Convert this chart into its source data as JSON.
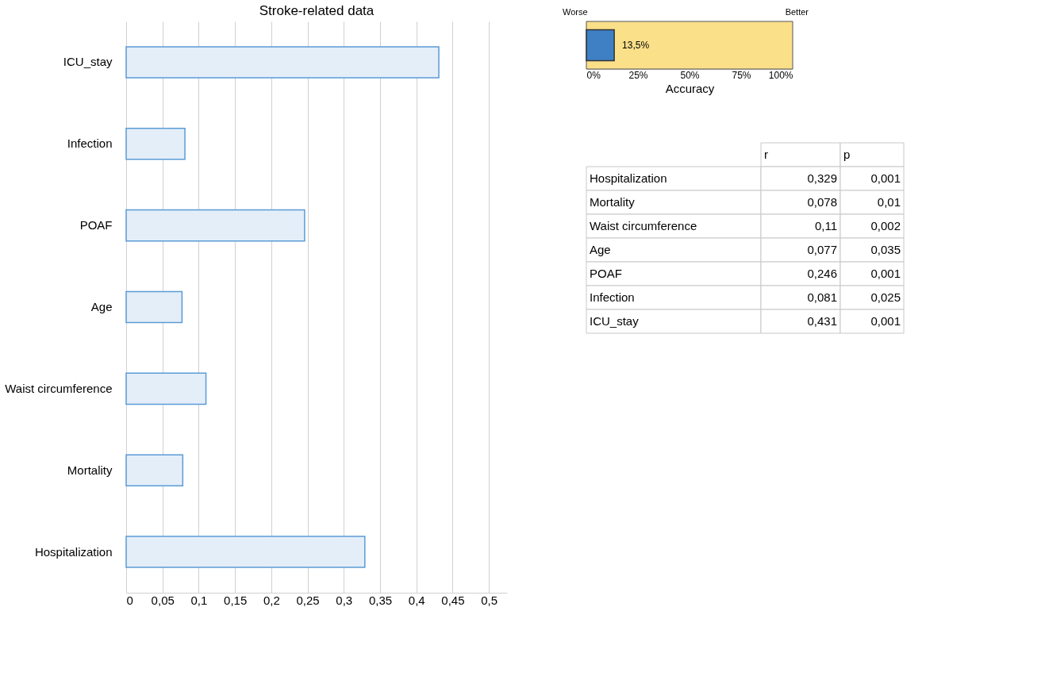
{
  "chart_data": [
    {
      "type": "bar",
      "orientation": "horizontal",
      "title": "Stroke-related data",
      "categories": [
        "ICU_stay",
        "Infection",
        "POAF",
        "Age",
        "Waist circumference",
        "Mortality",
        "Hospitalization"
      ],
      "values": [
        0.431,
        0.081,
        0.246,
        0.077,
        0.11,
        0.078,
        0.329
      ],
      "color": "#e4eef9",
      "xlim": [
        0,
        0.525
      ],
      "xticks": [
        0,
        {
          "value": 0.05,
          "label": "0,05"
        },
        {
          "value": 0.1,
          "label": "0,1"
        },
        {
          "value": 0.15,
          "label": "0,15"
        },
        {
          "value": 0.2,
          "label": "0,2"
        },
        {
          "value": 0.25,
          "label": "0,25"
        },
        {
          "value": 0.3,
          "label": "0,3"
        },
        {
          "value": 0.35,
          "label": "0,35"
        },
        {
          "value": 0.4,
          "label": "0,4"
        },
        {
          "value": 0.45,
          "label": "0,45"
        },
        {
          "value": 0.5,
          "label": "0,5"
        }
      ],
      "grid": "x"
    },
    {
      "type": "bar",
      "orientation": "horizontal",
      "categories": [
        null
      ],
      "values": [
        13.5
      ],
      "value_labels": [
        "13,5%"
      ],
      "color": "#3f7fc4",
      "xlim": [
        0,
        100
      ],
      "xticks": [
        {
          "value": 0,
          "label": "0%"
        },
        {
          "value": 25,
          "label": "25%"
        },
        {
          "value": 50,
          "label": "50%"
        },
        {
          "value": 75,
          "label": "75%"
        },
        {
          "value": 100,
          "label": "100%"
        }
      ],
      "xlabel": "Accuracy",
      "annotations": [
        "Worse",
        "Better"
      ],
      "bands": [
        {
          "axis": "x",
          "from": 0,
          "to": 100,
          "color": "#fbe08a"
        }
      ]
    },
    {
      "type": "other",
      "annotations": [
        "r",
        "p",
        "Hospitalization",
        "0,329",
        "0,001",
        "Mortality",
        "0,078",
        "0,01",
        "Waist circumference",
        "0,11",
        "0,002",
        "Age",
        "0,077",
        "0,035",
        "POAF",
        "0,246",
        "0,001",
        "Infection",
        "0,081",
        "0,025",
        "ICU_stay",
        "0,431",
        "0,001"
      ]
    }
  ]
}
